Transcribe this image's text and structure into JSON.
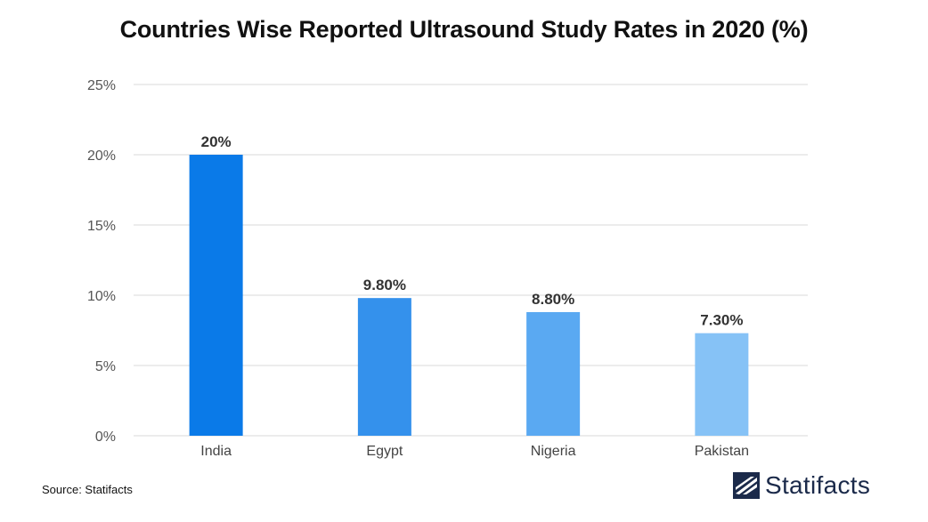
{
  "chart_data": {
    "type": "bar",
    "title": "Countries Wise Reported Ultrasound Study Rates in 2020 (%)",
    "categories": [
      "India",
      "Egypt",
      "Nigeria",
      "Pakistan"
    ],
    "values": [
      20,
      9.8,
      8.8,
      7.3
    ],
    "data_labels": [
      "20%",
      "9.80%",
      "8.80%",
      "7.30%"
    ],
    "ylim": [
      0,
      25
    ],
    "yticks": [
      0,
      5,
      10,
      15,
      20,
      25
    ],
    "ytick_labels": [
      "0%",
      "5%",
      "10%",
      "15%",
      "20%",
      "25%"
    ],
    "xlabel": "",
    "ylabel": "",
    "grid": true,
    "legend": "none",
    "bar_colors": [
      "#0a7ae8",
      "#3491ec",
      "#5aa9f2",
      "#86c2f6"
    ]
  },
  "footer": {
    "source": "Source: Statifacts",
    "brand": "Statifacts"
  },
  "colors": {
    "gridline": "#d9d9d9",
    "title": "#111111",
    "brand_logo": "#1b2a4a"
  },
  "icons": {
    "brand_logo": "statifacts-logo-icon"
  }
}
